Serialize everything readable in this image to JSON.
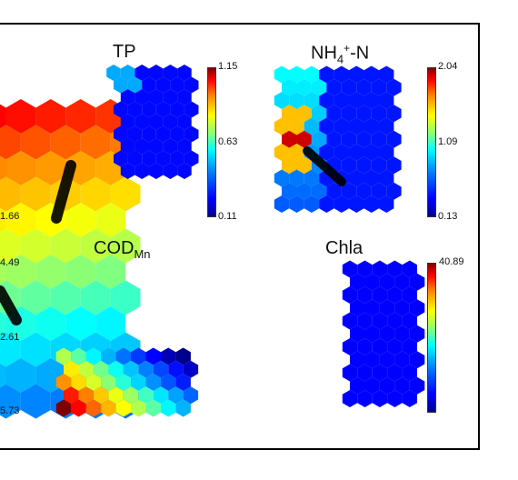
{
  "panels": {
    "tp": {
      "title": "TP",
      "max": "1.15",
      "mid": "0.63",
      "min": "0.11"
    },
    "nh4": {
      "title_main": "NH",
      "title_sub": "4",
      "title_sup": "+",
      "title_tail": "-N",
      "max": "2.04",
      "mid": "1.09",
      "min": "0.13"
    },
    "cod": {
      "title_main": "COD",
      "title_sub": "Mn"
    },
    "chla": {
      "title": "Chla",
      "max": "40.89"
    }
  },
  "left_labels": [
    "1.66",
    "4.49",
    "2.61",
    "5.73"
  ],
  "chart_data": {
    "type": "heatmap",
    "panels": [
      {
        "name": "TP",
        "colorbar": [
          0.11,
          0.63,
          1.15
        ]
      },
      {
        "name": "NH4+-N",
        "colorbar": [
          0.13,
          1.09,
          2.04
        ]
      },
      {
        "name": "CODMn"
      },
      {
        "name": "Chla",
        "colorbar_max": 40.89
      }
    ]
  }
}
